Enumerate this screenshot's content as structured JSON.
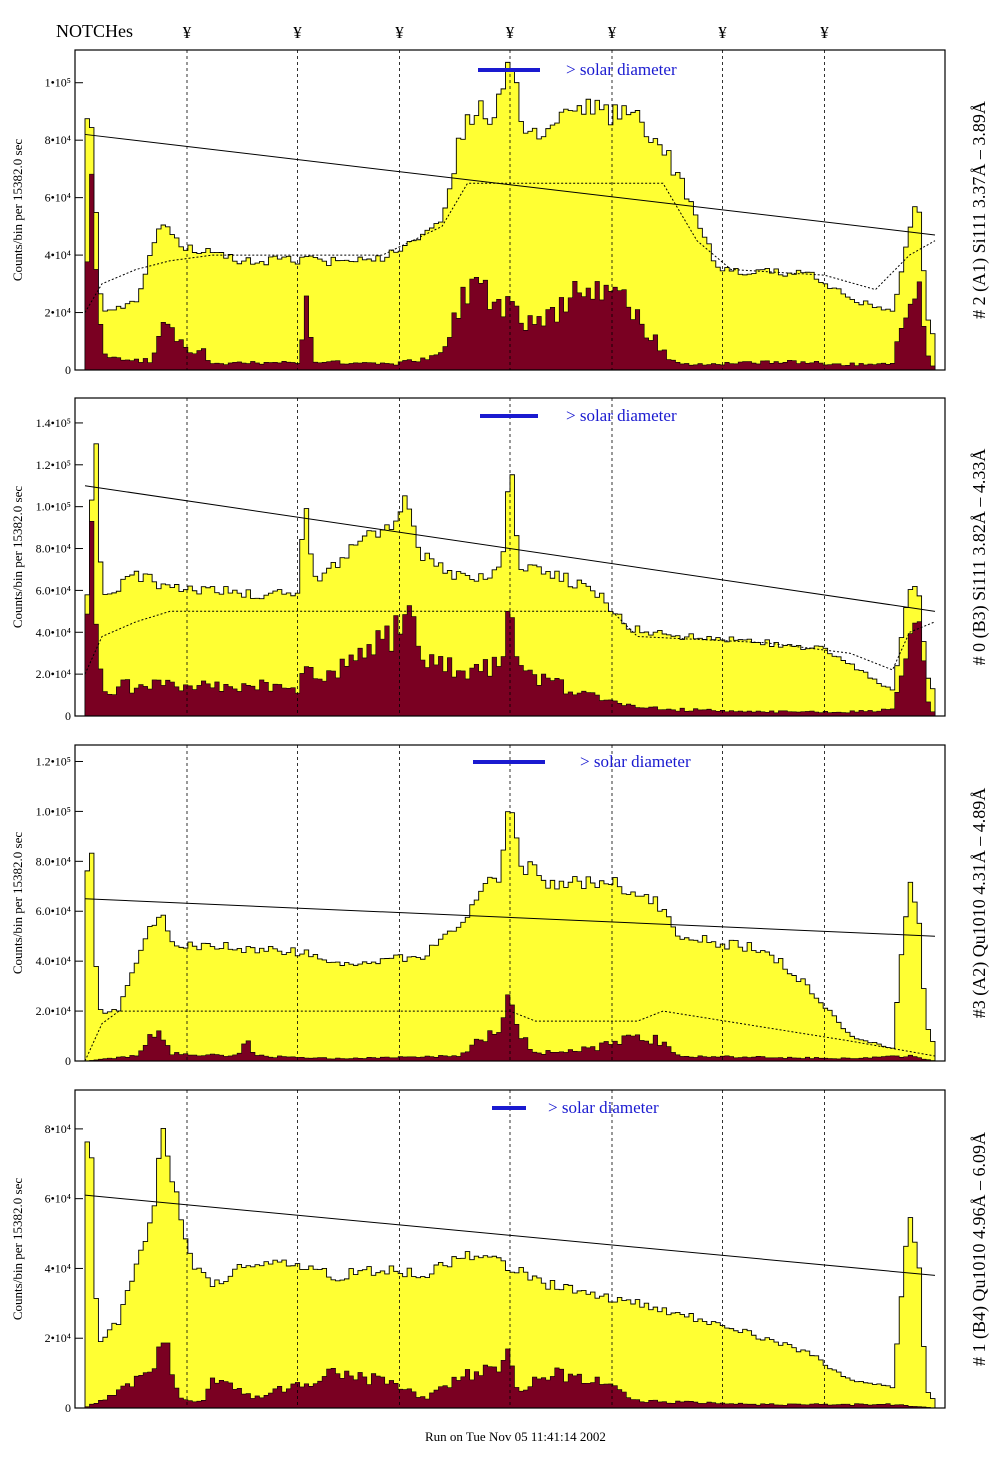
{
  "header": {
    "notches_label": "NOTCHes",
    "notch_marker_symbol": "¥",
    "notch_x": [
      0.12,
      0.25,
      0.37,
      0.5,
      0.62,
      0.75,
      0.87
    ]
  },
  "footer": {
    "run_text": "Run on Tue Nov 05 11:41:14 2002"
  },
  "colors": {
    "histogram_fill": "#ffff33",
    "secondary_fill": "#7a0022",
    "annotation_blue": "#1a1ad0",
    "line": "#000000"
  },
  "chart_data": [
    {
      "type": "area",
      "side_label": "# 2 (A1) Si111  3.37Å – 3.89Å",
      "ylabel": "Counts/bin per  15382.0 sec",
      "ylim": [
        0,
        110000
      ],
      "yticks": [
        0,
        20000,
        40000,
        60000,
        80000,
        100000
      ],
      "ytick_labels": [
        "0",
        "2•10⁴",
        "4•10⁴",
        "6•10⁴",
        "8•10⁴",
        "1•10⁵"
      ],
      "annotation": "> solar diameter",
      "trend_line": [
        [
          0.0,
          82000
        ],
        [
          1.0,
          47000
        ]
      ],
      "profile": [
        [
          0,
          92000
        ],
        [
          0.008,
          88000
        ],
        [
          0.015,
          40000
        ],
        [
          0.02,
          20000
        ],
        [
          0.04,
          22000
        ],
        [
          0.06,
          24000
        ],
        [
          0.09,
          50000
        ],
        [
          0.1,
          47000
        ],
        [
          0.12,
          43000
        ],
        [
          0.15,
          40000
        ],
        [
          0.18,
          38000
        ],
        [
          0.25,
          38000
        ],
        [
          0.3,
          38000
        ],
        [
          0.36,
          40000
        ],
        [
          0.42,
          50000
        ],
        [
          0.44,
          80000
        ],
        [
          0.46,
          91000
        ],
        [
          0.48,
          88000
        ],
        [
          0.5,
          105000
        ],
        [
          0.52,
          83000
        ],
        [
          0.55,
          85000
        ],
        [
          0.58,
          92000
        ],
        [
          0.6,
          90000
        ],
        [
          0.65,
          88000
        ],
        [
          0.68,
          78000
        ],
        [
          0.71,
          60000
        ],
        [
          0.74,
          38000
        ],
        [
          0.76,
          34000
        ],
        [
          0.85,
          34000
        ],
        [
          0.87,
          30000
        ],
        [
          0.9,
          25000
        ],
        [
          0.95,
          20000
        ],
        [
          0.97,
          48000
        ],
        [
          0.98,
          62000
        ],
        [
          0.99,
          20000
        ],
        [
          1.0,
          10000
        ]
      ],
      "secondary_profile": [
        [
          0,
          45000
        ],
        [
          0.008,
          55000
        ],
        [
          0.015,
          38000
        ],
        [
          0.02,
          5000
        ],
        [
          0.08,
          3000
        ],
        [
          0.09,
          15000
        ],
        [
          0.1,
          14000
        ],
        [
          0.12,
          8000
        ],
        [
          0.14,
          6000
        ],
        [
          0.15,
          2000
        ],
        [
          0.25,
          3000
        ],
        [
          0.26,
          22000
        ],
        [
          0.27,
          3000
        ],
        [
          0.36,
          2000
        ],
        [
          0.42,
          5000
        ],
        [
          0.44,
          22000
        ],
        [
          0.46,
          32000
        ],
        [
          0.48,
          26000
        ],
        [
          0.5,
          20000
        ],
        [
          0.52,
          15000
        ],
        [
          0.55,
          18000
        ],
        [
          0.57,
          26000
        ],
        [
          0.6,
          25000
        ],
        [
          0.64,
          22000
        ],
        [
          0.66,
          15000
        ],
        [
          0.68,
          6000
        ],
        [
          0.7,
          2000
        ],
        [
          0.85,
          3000
        ],
        [
          0.87,
          2000
        ],
        [
          0.95,
          2000
        ],
        [
          0.97,
          28000
        ],
        [
          0.98,
          35000
        ],
        [
          0.99,
          5000
        ],
        [
          1.0,
          0
        ]
      ],
      "dashed_profile": [
        [
          0,
          20000
        ],
        [
          0.02,
          30000
        ],
        [
          0.06,
          35000
        ],
        [
          0.1,
          38000
        ],
        [
          0.15,
          40000
        ],
        [
          0.35,
          40000
        ],
        [
          0.42,
          50000
        ],
        [
          0.45,
          65000
        ],
        [
          0.68,
          65000
        ],
        [
          0.72,
          45000
        ],
        [
          0.76,
          35000
        ],
        [
          0.87,
          33000
        ],
        [
          0.93,
          28000
        ],
        [
          0.97,
          40000
        ],
        [
          1.0,
          45000
        ]
      ]
    },
    {
      "type": "area",
      "side_label": "# 0 (B3) Si111  3.82Å – 4.33Å",
      "ylabel": "Counts/bin per  15382.0 sec",
      "ylim": [
        0,
        150000
      ],
      "yticks": [
        0,
        20000,
        40000,
        60000,
        80000,
        100000,
        120000,
        140000
      ],
      "ytick_labels": [
        "0",
        "2.0•10⁴",
        "4.0•10⁴",
        "6.0•10⁴",
        "8.0•10⁴",
        "1.0•10⁵",
        "1.2•10⁵",
        "1.4•10⁵"
      ],
      "annotation": "> solar diameter",
      "trend_line": [
        [
          0.0,
          110000
        ],
        [
          1.0,
          50000
        ]
      ],
      "profile": [
        [
          0,
          40000
        ],
        [
          0.008,
          100000
        ],
        [
          0.012,
          137000
        ],
        [
          0.02,
          60000
        ],
        [
          0.04,
          62000
        ],
        [
          0.06,
          67000
        ],
        [
          0.1,
          62000
        ],
        [
          0.15,
          60000
        ],
        [
          0.2,
          58000
        ],
        [
          0.25,
          60000
        ],
        [
          0.26,
          100000
        ],
        [
          0.27,
          65000
        ],
        [
          0.3,
          75000
        ],
        [
          0.32,
          85000
        ],
        [
          0.35,
          88000
        ],
        [
          0.37,
          95000
        ],
        [
          0.38,
          105000
        ],
        [
          0.39,
          80000
        ],
        [
          0.42,
          70000
        ],
        [
          0.45,
          65000
        ],
        [
          0.49,
          70000
        ],
        [
          0.5,
          125000
        ],
        [
          0.51,
          72000
        ],
        [
          0.55,
          68000
        ],
        [
          0.6,
          60000
        ],
        [
          0.64,
          42000
        ],
        [
          0.7,
          38000
        ],
        [
          0.8,
          35000
        ],
        [
          0.87,
          32000
        ],
        [
          0.9,
          25000
        ],
        [
          0.95,
          12000
        ],
        [
          0.97,
          60000
        ],
        [
          0.98,
          65000
        ],
        [
          0.99,
          20000
        ],
        [
          1.0,
          10000
        ]
      ],
      "secondary_profile": [
        [
          0,
          30000
        ],
        [
          0.008,
          75000
        ],
        [
          0.012,
          60000
        ],
        [
          0.02,
          10000
        ],
        [
          0.04,
          14000
        ],
        [
          0.08,
          15000
        ],
        [
          0.15,
          14000
        ],
        [
          0.2,
          14000
        ],
        [
          0.25,
          14000
        ],
        [
          0.26,
          25000
        ],
        [
          0.28,
          18000
        ],
        [
          0.3,
          22000
        ],
        [
          0.33,
          30000
        ],
        [
          0.35,
          35000
        ],
        [
          0.37,
          45000
        ],
        [
          0.38,
          50000
        ],
        [
          0.4,
          30000
        ],
        [
          0.42,
          25000
        ],
        [
          0.45,
          20000
        ],
        [
          0.49,
          28000
        ],
        [
          0.5,
          60000
        ],
        [
          0.51,
          22000
        ],
        [
          0.55,
          15000
        ],
        [
          0.6,
          10000
        ],
        [
          0.64,
          5000
        ],
        [
          0.7,
          3000
        ],
        [
          0.8,
          2000
        ],
        [
          0.9,
          2000
        ],
        [
          0.95,
          3000
        ],
        [
          0.97,
          30000
        ],
        [
          0.98,
          48000
        ],
        [
          0.99,
          10000
        ],
        [
          1.0,
          0
        ]
      ],
      "dashed_profile": [
        [
          0,
          20000
        ],
        [
          0.02,
          38000
        ],
        [
          0.06,
          45000
        ],
        [
          0.1,
          50000
        ],
        [
          0.25,
          50000
        ],
        [
          0.37,
          50000
        ],
        [
          0.62,
          50000
        ],
        [
          0.65,
          38000
        ],
        [
          0.8,
          35000
        ],
        [
          0.9,
          30000
        ],
        [
          0.95,
          22000
        ],
        [
          0.97,
          40000
        ],
        [
          1.0,
          45000
        ]
      ]
    },
    {
      "type": "area",
      "side_label": "#3 (A2) Qu1010  4.31Å – 4.89Å",
      "ylabel": "Counts/bin per  15382.0 sec",
      "ylim": [
        0,
        125000
      ],
      "yticks": [
        0,
        20000,
        40000,
        60000,
        80000,
        100000,
        120000
      ],
      "ytick_labels": [
        "0",
        "2.0•10⁴",
        "4.0•10⁴",
        "6.0•10⁴",
        "8.0•10⁴",
        "1.0•10⁵",
        "1.2•10⁵"
      ],
      "annotation": "> solar diameter",
      "trend_line": [
        [
          0.0,
          65000
        ],
        [
          1.0,
          50000
        ]
      ],
      "profile": [
        [
          0,
          75000
        ],
        [
          0.008,
          85000
        ],
        [
          0.015,
          20000
        ],
        [
          0.04,
          20000
        ],
        [
          0.06,
          40000
        ],
        [
          0.08,
          55000
        ],
        [
          0.09,
          62000
        ],
        [
          0.1,
          48000
        ],
        [
          0.15,
          46000
        ],
        [
          0.2,
          45000
        ],
        [
          0.25,
          44000
        ],
        [
          0.3,
          40000
        ],
        [
          0.35,
          40000
        ],
        [
          0.4,
          42000
        ],
        [
          0.44,
          55000
        ],
        [
          0.47,
          70000
        ],
        [
          0.49,
          75000
        ],
        [
          0.5,
          112000
        ],
        [
          0.51,
          80000
        ],
        [
          0.55,
          70000
        ],
        [
          0.6,
          72000
        ],
        [
          0.63,
          70000
        ],
        [
          0.66,
          68000
        ],
        [
          0.7,
          50000
        ],
        [
          0.75,
          47000
        ],
        [
          0.8,
          45000
        ],
        [
          0.85,
          30000
        ],
        [
          0.9,
          10000
        ],
        [
          0.95,
          5000
        ],
        [
          0.97,
          75000
        ],
        [
          0.98,
          60000
        ],
        [
          0.99,
          15000
        ],
        [
          1.0,
          5000
        ]
      ],
      "secondary_profile": [
        [
          0,
          0
        ],
        [
          0.06,
          2000
        ],
        [
          0.08,
          10000
        ],
        [
          0.09,
          12000
        ],
        [
          0.1,
          3000
        ],
        [
          0.18,
          2000
        ],
        [
          0.19,
          8000
        ],
        [
          0.2,
          2000
        ],
        [
          0.3,
          1000
        ],
        [
          0.44,
          2000
        ],
        [
          0.47,
          10000
        ],
        [
          0.49,
          15000
        ],
        [
          0.5,
          30000
        ],
        [
          0.51,
          12000
        ],
        [
          0.53,
          3000
        ],
        [
          0.6,
          5000
        ],
        [
          0.65,
          10000
        ],
        [
          0.68,
          8000
        ],
        [
          0.7,
          2000
        ],
        [
          0.9,
          1000
        ],
        [
          0.97,
          2000
        ],
        [
          1.0,
          0
        ]
      ],
      "dashed_profile": [
        [
          0,
          0
        ],
        [
          0.02,
          15000
        ],
        [
          0.04,
          20000
        ],
        [
          0.5,
          20000
        ],
        [
          0.53,
          16000
        ],
        [
          0.65,
          16000
        ],
        [
          0.68,
          20000
        ],
        [
          0.9,
          8000
        ],
        [
          1.0,
          2000
        ]
      ]
    },
    {
      "type": "area",
      "side_label": "# 1 (B4) Qu1010 4.96Å – 6.09Å",
      "ylabel": "Counts/bin per  15382.0 sec",
      "ylim": [
        0,
        90000
      ],
      "yticks": [
        0,
        20000,
        40000,
        60000,
        80000
      ],
      "ytick_labels": [
        "0",
        "2•10⁴",
        "4•10⁴",
        "6•10⁴",
        "8•10⁴"
      ],
      "annotation": "> solar diameter",
      "trend_line": [
        [
          0.0,
          61000
        ],
        [
          1.0,
          38000
        ]
      ],
      "profile": [
        [
          0,
          82000
        ],
        [
          0.008,
          70000
        ],
        [
          0.015,
          18000
        ],
        [
          0.04,
          25000
        ],
        [
          0.06,
          40000
        ],
        [
          0.08,
          55000
        ],
        [
          0.09,
          80000
        ],
        [
          0.1,
          70000
        ],
        [
          0.11,
          58000
        ],
        [
          0.13,
          40000
        ],
        [
          0.15,
          35000
        ],
        [
          0.2,
          42000
        ],
        [
          0.25,
          40000
        ],
        [
          0.3,
          38000
        ],
        [
          0.35,
          40000
        ],
        [
          0.4,
          38000
        ],
        [
          0.45,
          45000
        ],
        [
          0.5,
          40000
        ],
        [
          0.55,
          35000
        ],
        [
          0.6,
          32000
        ],
        [
          0.65,
          30000
        ],
        [
          0.7,
          27000
        ],
        [
          0.75,
          24000
        ],
        [
          0.8,
          20000
        ],
        [
          0.85,
          16000
        ],
        [
          0.9,
          8000
        ],
        [
          0.95,
          6000
        ],
        [
          0.97,
          55000
        ],
        [
          0.98,
          45000
        ],
        [
          0.99,
          5000
        ],
        [
          1.0,
          2000
        ]
      ],
      "secondary_profile": [
        [
          0,
          0
        ],
        [
          0.08,
          10000
        ],
        [
          0.09,
          20000
        ],
        [
          0.1,
          15000
        ],
        [
          0.11,
          3000
        ],
        [
          0.14,
          2000
        ],
        [
          0.15,
          8000
        ],
        [
          0.2,
          3000
        ],
        [
          0.3,
          10000
        ],
        [
          0.35,
          8000
        ],
        [
          0.4,
          3000
        ],
        [
          0.5,
          15000
        ],
        [
          0.51,
          5000
        ],
        [
          0.55,
          10000
        ],
        [
          0.6,
          8000
        ],
        [
          0.65,
          2000
        ],
        [
          0.8,
          1000
        ],
        [
          0.95,
          1000
        ],
        [
          1.0,
          0
        ]
      ],
      "dashed_profile": []
    }
  ]
}
